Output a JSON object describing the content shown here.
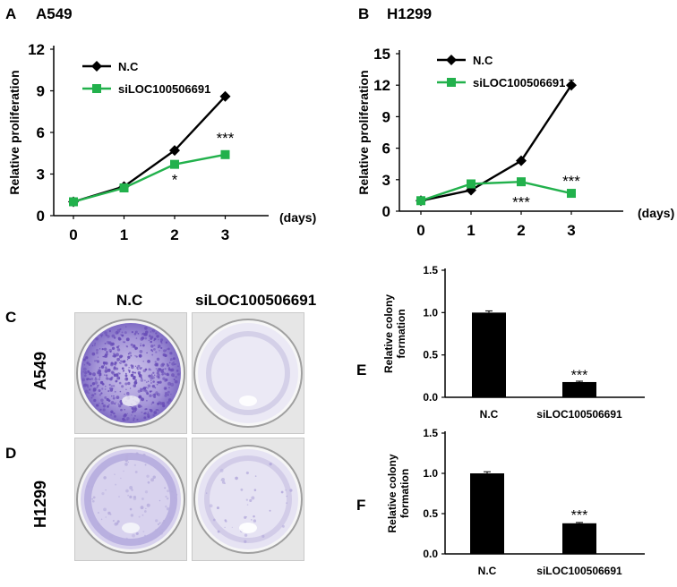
{
  "panels": {
    "A": {
      "letter": "A",
      "title": "A549"
    },
    "B": {
      "letter": "B",
      "title": "H1299"
    },
    "C": {
      "letter": "C",
      "cell_line": "A549"
    },
    "D": {
      "letter": "D",
      "cell_line": "H1299"
    },
    "E": {
      "letter": "E"
    },
    "F": {
      "letter": "F"
    }
  },
  "colony_columns": [
    "N.C",
    "siLOC100506691"
  ],
  "colors": {
    "nc": "#000000",
    "si": "#22b14c",
    "stain_dense": "#6a4fb8",
    "stain_light": "#b7aedd"
  },
  "chart_data": [
    {
      "id": "A",
      "type": "line",
      "title": "A549",
      "xlabel": "(days)",
      "ylabel": "Relative proliferation",
      "x": [
        0,
        1,
        2,
        3
      ],
      "xticks": [
        "0",
        "1",
        "2",
        "3"
      ],
      "yticks": [
        "0",
        "3",
        "6",
        "9",
        "12"
      ],
      "ylim": [
        0,
        12
      ],
      "series": [
        {
          "name": "N.C",
          "color": "#000000",
          "marker": "diamond",
          "values": [
            1.0,
            2.1,
            4.7,
            8.6
          ],
          "errors": [
            0.05,
            0.1,
            0.15,
            0.15
          ]
        },
        {
          "name": "siLOC100506691",
          "color": "#22b14c",
          "marker": "square",
          "values": [
            1.0,
            2.0,
            3.7,
            4.4
          ],
          "errors": [
            0.05,
            0.1,
            0.1,
            0.1
          ]
        }
      ],
      "annotations": [
        {
          "text": "*",
          "x": 2,
          "y": 2.6
        },
        {
          "text": "***",
          "x": 3,
          "y": 5.6
        }
      ],
      "legend_position": "top-left"
    },
    {
      "id": "B",
      "type": "line",
      "title": "H1299",
      "xlabel": "(days)",
      "ylabel": "Relative proliferation",
      "x": [
        0,
        1,
        2,
        3
      ],
      "xticks": [
        "0",
        "1",
        "2",
        "3"
      ],
      "yticks": [
        "0",
        "3",
        "6",
        "9",
        "12",
        "15"
      ],
      "ylim": [
        0,
        15
      ],
      "series": [
        {
          "name": "N.C",
          "color": "#000000",
          "marker": "diamond",
          "values": [
            1.0,
            2.0,
            4.8,
            12.0
          ],
          "errors": [
            0.05,
            0.1,
            0.15,
            0.5
          ]
        },
        {
          "name": "siLOC100506691",
          "color": "#22b14c",
          "marker": "square",
          "values": [
            1.0,
            2.6,
            2.8,
            1.7
          ],
          "errors": [
            0.05,
            0.1,
            0.1,
            0.1
          ]
        }
      ],
      "annotations": [
        {
          "text": "***",
          "x": 2,
          "y": 0.9
        },
        {
          "text": "***",
          "x": 3,
          "y": 2.9
        }
      ],
      "legend_position": "top-left"
    },
    {
      "id": "E",
      "type": "bar",
      "ylabel": "Relative colony formation",
      "categories": [
        "N.C",
        "siLOC100506691"
      ],
      "values": [
        1.0,
        0.18
      ],
      "errors": [
        0.02,
        0.01
      ],
      "yticks": [
        "0.0",
        "0.5",
        "1.0",
        "1.5"
      ],
      "ylim": [
        0,
        1.5
      ],
      "annotations": [
        {
          "text": "***",
          "category": 1,
          "y": 0.27
        }
      ]
    },
    {
      "id": "F",
      "type": "bar",
      "ylabel": "Relative colony formation",
      "categories": [
        "N.C",
        "siLOC100506691"
      ],
      "values": [
        1.0,
        0.38
      ],
      "errors": [
        0.02,
        0.01
      ],
      "yticks": [
        "0.0",
        "0.5",
        "1.0",
        "1.5"
      ],
      "ylim": [
        0,
        1.5
      ],
      "annotations": [
        {
          "text": "***",
          "category": 1,
          "y": 0.49
        }
      ]
    }
  ]
}
